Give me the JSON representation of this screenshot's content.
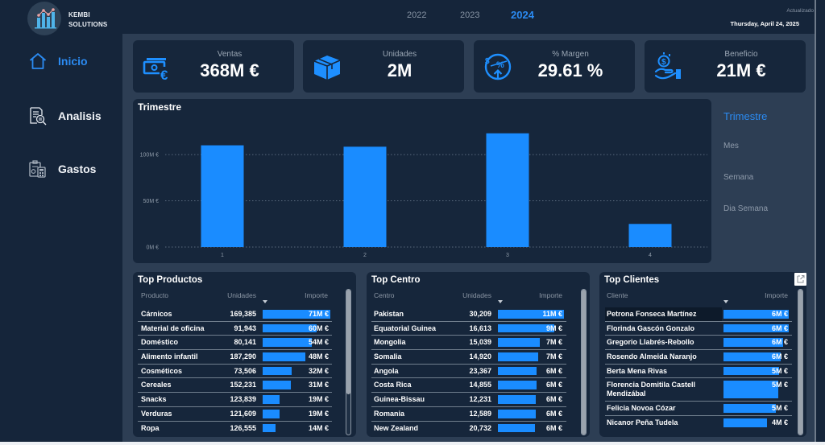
{
  "brand": {
    "line1": "KEMBI",
    "line2": "SOLUTIONS"
  },
  "years": [
    {
      "label": "2022",
      "active": false
    },
    {
      "label": "2023",
      "active": false
    },
    {
      "label": "2024",
      "active": true
    }
  ],
  "updated": {
    "label": "Actualizado",
    "date": "Thursday, April 24, 2025"
  },
  "nav": [
    {
      "label": "Inicio",
      "icon": "home-icon",
      "active": true
    },
    {
      "label": "Analisis",
      "icon": "document-search-icon",
      "active": false
    },
    {
      "label": "Gastos",
      "icon": "clipboard-calculator-icon",
      "active": false
    }
  ],
  "kpis": [
    {
      "label": "Ventas",
      "value": "368M €",
      "icon": "money-euro-icon"
    },
    {
      "label": "Unidades",
      "value": "2M",
      "icon": "box-icon"
    },
    {
      "label": "% Margen",
      "value": "29.61 %",
      "icon": "percent-growth-icon"
    },
    {
      "label": "Beneficio",
      "value": "21M €",
      "icon": "hand-coin-icon"
    }
  ],
  "chart_data": {
    "type": "bar",
    "title": "Trimestre",
    "categories": [
      "1",
      "2",
      "3",
      "4"
    ],
    "values": [
      110,
      108.5,
      123,
      25
    ],
    "unit": "M €",
    "xlabel": "",
    "ylabel": "",
    "yticks": [
      {
        "value": 0,
        "label": "0M €"
      },
      {
        "value": 50,
        "label": "50M €"
      },
      {
        "value": 100,
        "label": "100M €"
      }
    ],
    "ylim": [
      0,
      134
    ],
    "grid": true,
    "legend": "none"
  },
  "granularity": {
    "options": [
      "Trimestre",
      "Mes",
      "Semana",
      "Dia Semana"
    ],
    "selected": "Trimestre"
  },
  "tables": {
    "productos": {
      "title": "Top Productos",
      "columns": {
        "name": "Producto",
        "units": "Unidades",
        "importe": "Importe"
      },
      "sorted_by": "Importe",
      "rows": [
        {
          "name": "Cárnicos",
          "units": "169,385",
          "importe": "71M €",
          "bar": 1.0
        },
        {
          "name": "Material de oficina",
          "units": "91,943",
          "importe": "60M €",
          "bar": 0.8
        },
        {
          "name": "Doméstico",
          "units": "80,141",
          "importe": "54M €",
          "bar": 0.73
        },
        {
          "name": "Alimento infantil",
          "units": "187,290",
          "importe": "48M €",
          "bar": 0.63
        },
        {
          "name": "Cosméticos",
          "units": "73,506",
          "importe": "32M €",
          "bar": 0.43
        },
        {
          "name": "Cereales",
          "units": "152,231",
          "importe": "31M €",
          "bar": 0.42
        },
        {
          "name": "Snacks",
          "units": "123,839",
          "importe": "19M €",
          "bar": 0.25
        },
        {
          "name": "Verduras",
          "units": "121,609",
          "importe": "19M €",
          "bar": 0.25
        },
        {
          "name": "Ropa",
          "units": "126,555",
          "importe": "14M €",
          "bar": 0.19
        }
      ]
    },
    "centro": {
      "title": "Top Centro",
      "columns": {
        "name": "Centro",
        "units": "Unidades",
        "importe": "Importe"
      },
      "sorted_by": "Importe",
      "rows": [
        {
          "name": "Pakistan",
          "units": "30,209",
          "importe": "11M €",
          "bar": 1.0
        },
        {
          "name": "Equatorial Guinea",
          "units": "16,613",
          "importe": "9M €",
          "bar": 0.85
        },
        {
          "name": "Mongolia",
          "units": "15,039",
          "importe": "7M €",
          "bar": 0.63
        },
        {
          "name": "Somalia",
          "units": "14,920",
          "importe": "7M €",
          "bar": 0.61
        },
        {
          "name": "Angola",
          "units": "23,367",
          "importe": "6M €",
          "bar": 0.59
        },
        {
          "name": "Costa Rica",
          "units": "14,855",
          "importe": "6M €",
          "bar": 0.59
        },
        {
          "name": "Guinea-Bissau",
          "units": "12,231",
          "importe": "6M €",
          "bar": 0.57
        },
        {
          "name": "Romania",
          "units": "12,589",
          "importe": "6M €",
          "bar": 0.57
        },
        {
          "name": "New Zealand",
          "units": "20,732",
          "importe": "6M €",
          "bar": 0.56
        }
      ]
    },
    "clientes": {
      "title": "Top Clientes",
      "columns": {
        "name": "Cliente",
        "importe": "Importe"
      },
      "sorted_by": "Importe",
      "rows": [
        {
          "name": "Petrona Fonseca Martínez",
          "importe": "6M €",
          "bar": 1.0,
          "selected": true
        },
        {
          "name": "Florinda Gascón Gonzalo",
          "importe": "6M €",
          "bar": 1.0
        },
        {
          "name": "Gregorio Llabrés-Rebollo",
          "importe": "6M €",
          "bar": 0.91
        },
        {
          "name": "Rosendo Almeida Naranjo",
          "importe": "6M €",
          "bar": 0.88
        },
        {
          "name": "Berta Mena Rivas",
          "importe": "5M €",
          "bar": 0.85
        },
        {
          "name": "Florencia Domitila Castell Mendizábal",
          "importe": "5M €",
          "bar": 0.84
        },
        {
          "name": "Felicia Novoa Cózar",
          "importe": "5M €",
          "bar": 0.8
        },
        {
          "name": "Nicanor Peña Tudela",
          "importe": "4M €",
          "bar": 0.67
        }
      ]
    }
  },
  "colors": {
    "accent": "#1a8cff",
    "active_text": "#2b8bf2",
    "panel": "#2d3e54",
    "card": "#16263b"
  }
}
